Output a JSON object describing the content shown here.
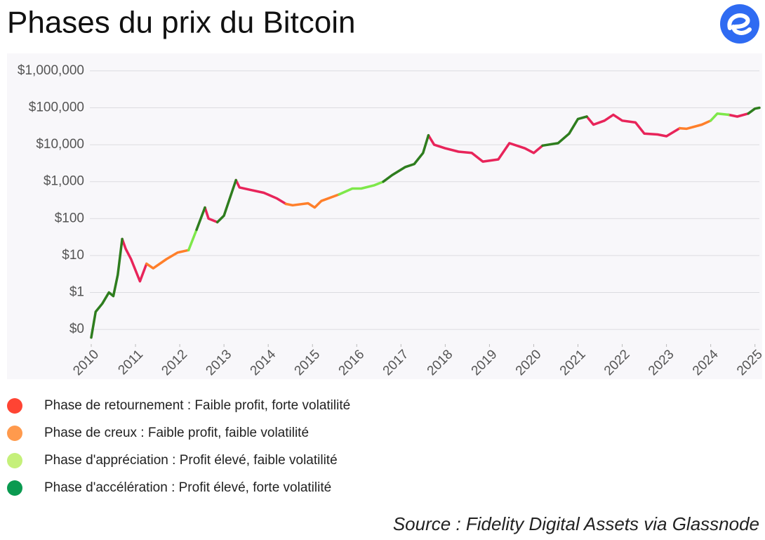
{
  "chart_data": {
    "type": "line",
    "title": "Phases du prix du Bitcoin",
    "source": "Source : Fidelity Digital Assets via Glassnode",
    "yscale": "log",
    "grid": true,
    "x": [
      2010,
      2010.1,
      2010.25,
      2010.4,
      2010.5,
      2010.6,
      2010.7,
      2010.78,
      2010.9,
      2011.1,
      2011.25,
      2011.4,
      2011.7,
      2011.95,
      2012.2,
      2012.38,
      2012.57,
      2012.65,
      2012.85,
      2013,
      2013.27,
      2013.35,
      2013.6,
      2013.9,
      2014.2,
      2014.4,
      2014.55,
      2014.9,
      2015.05,
      2015.2,
      2015.6,
      2015.9,
      2016.1,
      2016.4,
      2016.6,
      2016.8,
      2017.1,
      2017.3,
      2017.5,
      2017.62,
      2017.75,
      2018,
      2018.3,
      2018.6,
      2018.85,
      2019.2,
      2019.45,
      2019.8,
      2020,
      2020.2,
      2020.55,
      2020.8,
      2021,
      2021.2,
      2021.35,
      2021.6,
      2021.8,
      2022,
      2022.3,
      2022.5,
      2022.8,
      2023,
      2023.3,
      2023.45,
      2023.8,
      2024,
      2024.15,
      2024.4,
      2024.6,
      2024.85,
      2025,
      2025.1
    ],
    "xlim": [
      2010,
      2025.1
    ],
    "xticks": [
      2010,
      2011,
      2012,
      2013,
      2014,
      2015,
      2016,
      2017,
      2018,
      2019,
      2020,
      2021,
      2022,
      2023,
      2024,
      2025
    ],
    "ylim": [
      0.04,
      2500000
    ],
    "yticks": [
      {
        "value": 0.1,
        "label": "$0"
      },
      {
        "value": 1,
        "label": "$1"
      },
      {
        "value": 10,
        "label": "$10"
      },
      {
        "value": 100,
        "label": "$100"
      },
      {
        "value": 1000,
        "label": "$1,000"
      },
      {
        "value": 10000,
        "label": "$10,000"
      },
      {
        "value": 100000,
        "label": "$100,000"
      },
      {
        "value": 1000000,
        "label": "$1,000,000"
      }
    ],
    "series": [
      {
        "name": "Phase de retournement : Faible profit, forte volatilité",
        "color": "#e8245a",
        "marker_color": "#ff4433",
        "values": [
          null,
          null,
          null,
          null,
          null,
          null,
          28,
          15,
          8,
          2,
          6,
          null,
          null,
          null,
          null,
          null,
          200,
          100,
          80,
          null,
          1100,
          700,
          600,
          500,
          350,
          250,
          null,
          null,
          null,
          null,
          null,
          null,
          null,
          null,
          null,
          null,
          null,
          null,
          null,
          18000,
          10000,
          8000,
          6500,
          6000,
          3500,
          4000,
          11000,
          8000,
          6000,
          9500,
          null,
          null,
          null,
          58000,
          35000,
          45000,
          65000,
          45000,
          40000,
          20000,
          19000,
          17000,
          28000,
          null,
          null,
          null,
          null,
          65000,
          58000,
          70000,
          null,
          null
        ]
      },
      {
        "name": "Phase de creux : Faible profit, faible volatilité",
        "color": "#ff7f2a",
        "marker_color": "#ff9a4d",
        "values": [
          null,
          null,
          null,
          null,
          null,
          null,
          null,
          null,
          null,
          null,
          6,
          4.5,
          8,
          12,
          14,
          null,
          null,
          null,
          null,
          null,
          null,
          null,
          null,
          null,
          null,
          250,
          230,
          260,
          200,
          300,
          450,
          null,
          null,
          null,
          null,
          null,
          null,
          null,
          null,
          null,
          null,
          null,
          null,
          null,
          null,
          null,
          null,
          null,
          null,
          null,
          null,
          null,
          null,
          null,
          null,
          null,
          null,
          null,
          null,
          null,
          null,
          null,
          28000,
          27000,
          35000,
          45000,
          null,
          null,
          null,
          null,
          null,
          null
        ]
      },
      {
        "name": "Phase d'appréciation : Profit élevé, faible volatilité",
        "color": "#7ee84a",
        "marker_color": "#c5f07a",
        "values": [
          null,
          null,
          null,
          null,
          null,
          null,
          null,
          null,
          null,
          null,
          null,
          null,
          null,
          null,
          14,
          50,
          null,
          null,
          null,
          null,
          null,
          null,
          null,
          null,
          null,
          null,
          null,
          null,
          null,
          null,
          450,
          650,
          650,
          800,
          1000,
          null,
          null,
          null,
          null,
          null,
          null,
          null,
          null,
          null,
          null,
          null,
          null,
          null,
          null,
          null,
          null,
          null,
          null,
          null,
          null,
          null,
          null,
          null,
          null,
          null,
          null,
          null,
          null,
          null,
          null,
          45000,
          70000,
          65000,
          null,
          null,
          null,
          null
        ]
      },
      {
        "name": "Phase d'accélération : Profit élevé, forte volatilité",
        "color": "#2e7d1e",
        "marker_color": "#0a9a50",
        "values": [
          0.06,
          0.3,
          0.5,
          1,
          0.8,
          3,
          28,
          null,
          null,
          null,
          null,
          null,
          null,
          null,
          null,
          50,
          200,
          null,
          80,
          120,
          1100,
          null,
          null,
          null,
          null,
          null,
          null,
          null,
          null,
          null,
          null,
          null,
          null,
          null,
          1000,
          1500,
          2500,
          3000,
          6000,
          18000,
          null,
          null,
          null,
          null,
          null,
          null,
          null,
          null,
          null,
          9500,
          11000,
          20000,
          50000,
          58000,
          null,
          null,
          null,
          null,
          null,
          null,
          null,
          null,
          null,
          null,
          null,
          null,
          null,
          null,
          null,
          70000,
          95000,
          100000
        ]
      }
    ]
  }
}
